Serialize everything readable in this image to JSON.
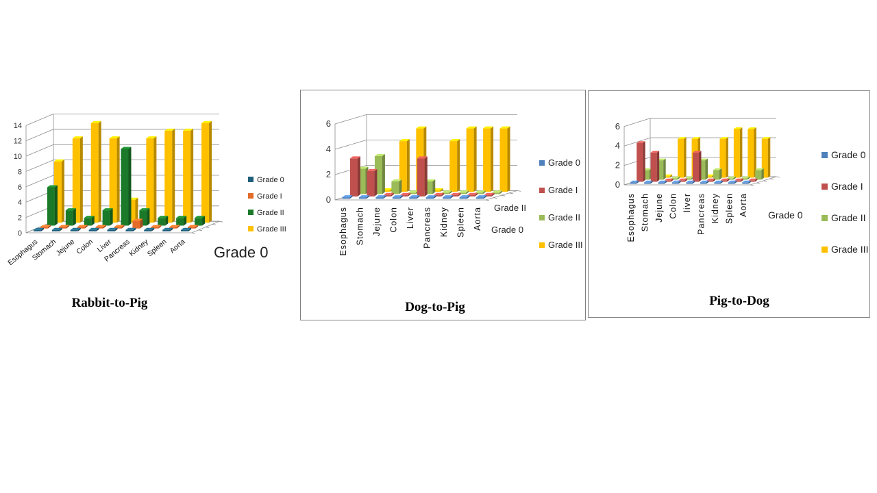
{
  "chart_data": [
    {
      "type": "bar",
      "title": "Rabbit-to-Pig",
      "categories": [
        "Esophagus",
        "Stomach",
        "Jejune",
        "Colon",
        "Liver",
        "Pancreas",
        "Kidney",
        "Spleen",
        "Aorta"
      ],
      "series": [
        {
          "name": "Grade 0",
          "color": "#1f5f7a",
          "values": [
            0,
            0,
            0,
            0,
            0,
            0,
            0,
            0,
            0
          ]
        },
        {
          "name": "Grade I",
          "color": "#e46c2a",
          "values": [
            0,
            0,
            0,
            0,
            0,
            1,
            0,
            0,
            0
          ]
        },
        {
          "name": "Grade II",
          "color": "#1a7a2a",
          "values": [
            5,
            2,
            1,
            2,
            10,
            2,
            1,
            1,
            1
          ]
        },
        {
          "name": "Grade III",
          "color": "#ffc000",
          "values": [
            8,
            11,
            13,
            11,
            3,
            11,
            12,
            12,
            13
          ]
        }
      ],
      "ylim": [
        0,
        14
      ],
      "yticks": [
        "0",
        "2",
        "4",
        "6",
        "8",
        "10",
        "12",
        "14"
      ],
      "depth_labels": [
        "Grade 0"
      ],
      "legend": [
        "Grade 0",
        "Grade I",
        "Grade II",
        "Grade III"
      ]
    },
    {
      "type": "bar",
      "title": "Dog-to-Pig",
      "categories": [
        "Esophagus",
        "Stomach",
        "Jejune",
        "Colon",
        "Liver",
        "Pancreas",
        "Kidney",
        "Spleen",
        "Aorta"
      ],
      "series": [
        {
          "name": "Grade 0",
          "color": "#4f81bd",
          "values": [
            0,
            0,
            0,
            0,
            0,
            0,
            0,
            0,
            0
          ]
        },
        {
          "name": "Grade I",
          "color": "#c0504d",
          "values": [
            3,
            2,
            0,
            0,
            3,
            0,
            0,
            0,
            0
          ]
        },
        {
          "name": "Grade II",
          "color": "#9bbb59",
          "values": [
            2,
            3,
            1,
            0,
            1,
            0,
            0,
            0,
            0
          ]
        },
        {
          "name": "Grade III",
          "color": "#ffc000",
          "values": [
            0,
            0,
            4,
            5,
            0,
            4,
            5,
            5,
            5
          ]
        }
      ],
      "ylim": [
        0,
        6
      ],
      "yticks": [
        "0",
        "2",
        "4",
        "6"
      ],
      "depth_labels": [
        "Grade II",
        "Grade 0"
      ],
      "legend": [
        "Grade 0",
        "Grade I",
        "Grade II",
        "Grade III"
      ]
    },
    {
      "type": "bar",
      "title": "Pig-to-Dog",
      "categories": [
        "Esophagus",
        "Stomach",
        "Jejune",
        "Colon",
        "liver",
        "Pancreas",
        "Kidney",
        "Spleen",
        "Aorta"
      ],
      "series": [
        {
          "name": "Grade 0",
          "color": "#4f81bd",
          "values": [
            0,
            0,
            0,
            0,
            0,
            0,
            0,
            0,
            0
          ]
        },
        {
          "name": "Grade I",
          "color": "#c0504d",
          "values": [
            4,
            3,
            0,
            0,
            3,
            0,
            0,
            0,
            0
          ]
        },
        {
          "name": "Grade II",
          "color": "#9bbb59",
          "values": [
            1,
            2,
            0,
            0,
            2,
            1,
            0,
            0,
            1
          ]
        },
        {
          "name": "Grade III",
          "color": "#ffc000",
          "values": [
            0,
            0,
            4,
            4,
            0,
            4,
            5,
            5,
            4
          ]
        }
      ],
      "ylim": [
        0,
        6
      ],
      "yticks": [
        "0",
        "2",
        "4",
        "6"
      ],
      "depth_labels": [
        "Grade 0"
      ],
      "legend": [
        "Grade 0",
        "Grade I",
        "Grade II",
        "Grade III"
      ]
    }
  ]
}
